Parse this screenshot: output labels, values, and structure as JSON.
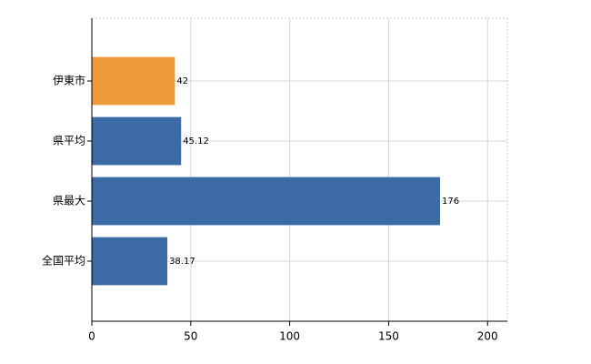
{
  "chart_data": {
    "type": "barh",
    "categories": [
      "伊東市",
      "県平均",
      "県最大",
      "全国平均"
    ],
    "values": [
      42,
      45.12,
      176,
      38.17
    ],
    "colors": [
      "#ef9a3a",
      "#3b6aa5",
      "#3b6aa5",
      "#3b6aa5"
    ],
    "xlim": [
      0,
      210
    ],
    "xticks": [
      0,
      50,
      100,
      150,
      200
    ],
    "grid": true
  }
}
